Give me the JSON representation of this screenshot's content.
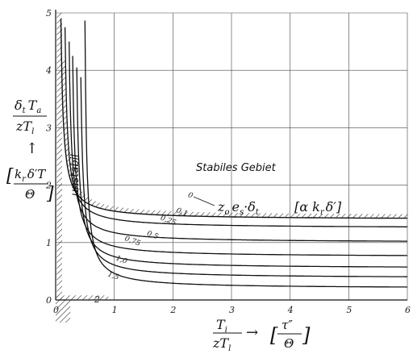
{
  "chart_data": {
    "type": "line",
    "title": "",
    "xlim": [
      0,
      6
    ],
    "ylim": [
      0,
      5
    ],
    "x_ticks": [
      "0",
      "1",
      "2",
      "3",
      "4",
      "5",
      "6"
    ],
    "y_ticks": [
      "0",
      "1",
      "2",
      "3",
      "4",
      "5"
    ],
    "grid": true,
    "xlabel": {
      "numerator": "T",
      "numerator_sub": "i",
      "denominator": "zT",
      "denominator_sub": "l",
      "arrow": "→",
      "bracket_numerator": "τ″",
      "bracket_denominator": "Θ"
    },
    "ylabel": {
      "numerator": "δ",
      "numerator_sub": "t",
      "numerator_b": "T",
      "numerator_b_sub": "a",
      "denominator": "zT",
      "denominator_sub": "l",
      "arrow": "↑",
      "bracket_numerator": "k",
      "bracket_numerator_sub": "r",
      "bracket_numerator_b": "δ′T",
      "bracket_denominator": "Θ"
    },
    "annotations": {
      "stable_region": "Stabiles Gebiet",
      "unstable_region": "unstabil",
      "parameter": "z",
      "parameter_sub": "o",
      "parameter_b": "e",
      "parameter_b_sub": "s",
      "parameter_c": "·δ",
      "parameter_c_sub": "t",
      "bracket_parameter": "α k",
      "bracket_parameter_sub": "r",
      "bracket_parameter_b": "δ′",
      "lower_label": "2"
    },
    "series": [
      {
        "label": "0",
        "asymptote_x": 0.05,
        "asymptote_y": 1.4,
        "rule": "boundary",
        "label_at": [
          2.25,
          1.8
        ]
      },
      {
        "label": "0,1",
        "asymptote_x": 0.12,
        "asymptote_y": 1.25,
        "label_at": [
          2.05,
          1.53
        ]
      },
      {
        "label": "0,25",
        "asymptote_x": 0.19,
        "asymptote_y": 1.0,
        "label_at": [
          1.78,
          1.4
        ]
      },
      {
        "label": "0,5",
        "asymptote_x": 0.25,
        "asymptote_y": 0.75,
        "label_at": [
          1.55,
          1.13
        ]
      },
      {
        "label": "0,75",
        "asymptote_x": 0.32,
        "asymptote_y": 0.55,
        "label_at": [
          1.17,
          1.04
        ]
      },
      {
        "label": "1,0",
        "asymptote_x": 0.39,
        "asymptote_y": 0.38,
        "label_at": [
          1.02,
          0.7
        ]
      },
      {
        "label": "1,5",
        "asymptote_x": 0.47,
        "asymptote_y": 0.2,
        "label_at": [
          0.88,
          0.42
        ]
      }
    ]
  }
}
